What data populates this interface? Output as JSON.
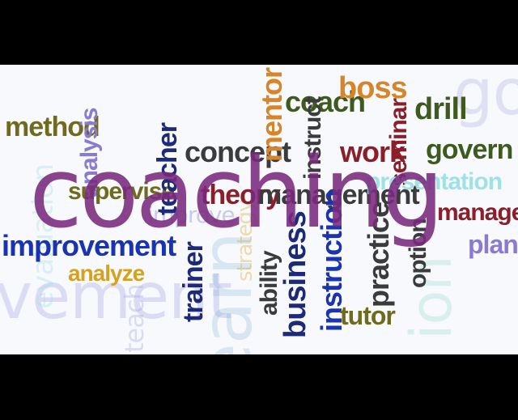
{
  "image": {
    "background": "#f7f9fc",
    "letterbox": "#000000"
  },
  "words": {
    "coaching": "coaching",
    "method": "method",
    "analysis": "analysis",
    "evaluation": "evaluation",
    "supervise": "supervise",
    "improvement": "improvement",
    "analyze": "analyze",
    "teach": "teach",
    "teacher": "teacher",
    "improve": "improve",
    "trainer": "trainer",
    "concept": "concept",
    "mentor": "mentor",
    "coach": "coach",
    "boss": "boss",
    "instruct": "instruct",
    "work": "work",
    "seminar": "seminar",
    "drill": "drill",
    "govern": "govern",
    "theory": "theory",
    "management": "management",
    "presentation": "presentation",
    "manager": "manager",
    "plan": "plan",
    "strategy": "strategy",
    "ability": "ability",
    "business": "business",
    "instruction": "instruction",
    "practice": "practice",
    "option": "option",
    "tutor": "tutor",
    "learn": "learn",
    "gov": "gov",
    "vement": "vement",
    "ion": "ion"
  },
  "colors": {
    "purple_main": "#7a2a7e",
    "olive": "#6e6a1e",
    "blue": "#1a33b0",
    "navy": "#1c2a78",
    "orange": "#d7852a",
    "maroon": "#8a1f2a",
    "lavender": "#a9a3e6",
    "aqua": "#9fe2e6",
    "gold": "#d6a21e",
    "darkgreen": "#3f5a1e"
  }
}
